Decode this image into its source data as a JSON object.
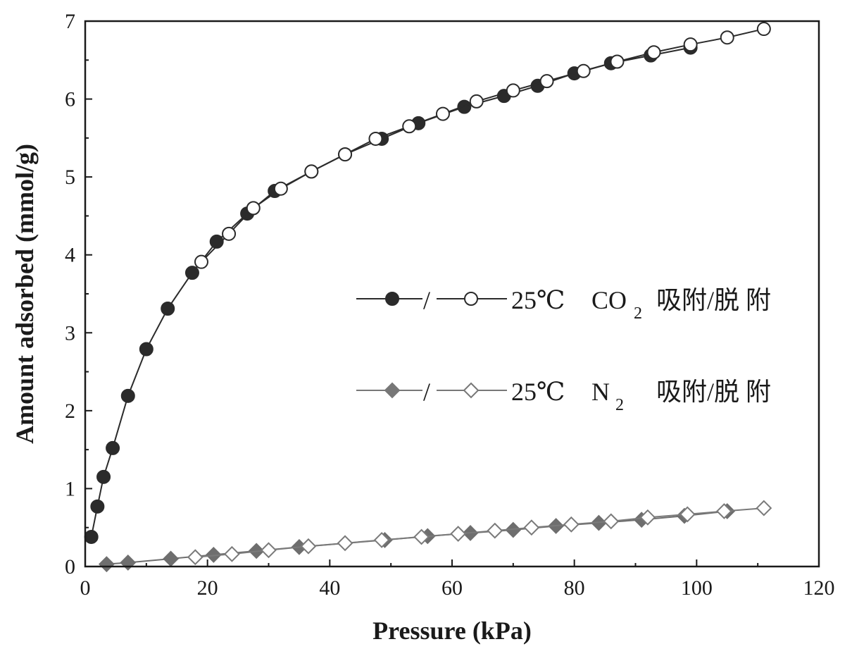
{
  "chart_data": {
    "type": "line",
    "xlabel": "Pressure (kPa)",
    "ylabel": "Amount adsorbed (mmol/g)",
    "xlim": [
      0,
      120
    ],
    "ylim": [
      0,
      7
    ],
    "xticks": [
      "0",
      "20",
      "40",
      "60",
      "80",
      "100",
      "120"
    ],
    "yticks": [
      "0",
      "1",
      "2",
      "3",
      "4",
      "5",
      "6",
      "7"
    ],
    "grid": false,
    "legend_position": "center-right",
    "legend": [
      {
        "sep": "/",
        "temp": "25℃",
        "gas": "CO",
        "gas_sub": "2",
        "desc": "吸附/脱 附",
        "adsorption_marker": "filled-circle",
        "desorption_marker": "open-circle",
        "color": "#2b2b2b"
      },
      {
        "sep": "/",
        "temp": "25℃",
        "gas": "N",
        "gas_sub": "2",
        "desc": "吸附/脱 附",
        "adsorption_marker": "filled-diamond",
        "desorption_marker": "open-diamond",
        "color": "#777777"
      }
    ],
    "series": [
      {
        "key": "co2_ads",
        "marker": "circle",
        "filled": true,
        "color": "#2b2b2b",
        "points": [
          [
            1,
            0.38
          ],
          [
            2,
            0.77
          ],
          [
            3,
            1.15
          ],
          [
            4.5,
            1.52
          ],
          [
            7,
            2.19
          ],
          [
            10,
            2.79
          ],
          [
            13.5,
            3.31
          ],
          [
            17.5,
            3.77
          ],
          [
            21.5,
            4.17
          ],
          [
            26.5,
            4.53
          ],
          [
            31,
            4.82
          ],
          [
            37,
            5.07
          ],
          [
            42.5,
            5.29
          ],
          [
            48.5,
            5.49
          ],
          [
            54.5,
            5.69
          ],
          [
            62,
            5.9
          ],
          [
            68.5,
            6.04
          ],
          [
            74,
            6.17
          ],
          [
            80,
            6.33
          ],
          [
            86,
            6.46
          ],
          [
            92.5,
            6.56
          ],
          [
            99,
            6.66
          ]
        ]
      },
      {
        "key": "co2_des",
        "marker": "circle",
        "filled": false,
        "color": "#2b2b2b",
        "points": [
          [
            111,
            6.9
          ],
          [
            105,
            6.79
          ],
          [
            99,
            6.7
          ],
          [
            93,
            6.6
          ],
          [
            87,
            6.48
          ],
          [
            81.5,
            6.36
          ],
          [
            75.5,
            6.23
          ],
          [
            70,
            6.11
          ],
          [
            64,
            5.97
          ],
          [
            58.5,
            5.81
          ],
          [
            53,
            5.65
          ],
          [
            47.5,
            5.49
          ],
          [
            42.5,
            5.29
          ],
          [
            37,
            5.07
          ],
          [
            32,
            4.85
          ],
          [
            27.5,
            4.6
          ],
          [
            23.5,
            4.27
          ],
          [
            19,
            3.91
          ]
        ]
      },
      {
        "key": "n2_ads",
        "marker": "diamond",
        "filled": true,
        "color": "#6e6e6e",
        "points": [
          [
            3.5,
            0.03
          ],
          [
            7,
            0.05
          ],
          [
            14,
            0.1
          ],
          [
            21,
            0.15
          ],
          [
            28,
            0.2
          ],
          [
            35,
            0.25
          ],
          [
            49,
            0.34
          ],
          [
            56,
            0.39
          ],
          [
            63,
            0.43
          ],
          [
            70,
            0.47
          ],
          [
            77,
            0.52
          ],
          [
            84,
            0.56
          ],
          [
            91,
            0.6
          ],
          [
            98,
            0.65
          ],
          [
            105,
            0.71
          ]
        ]
      },
      {
        "key": "n2_des",
        "marker": "diamond",
        "filled": false,
        "color": "#7a7a7a",
        "points": [
          [
            111,
            0.75
          ],
          [
            104.5,
            0.71
          ],
          [
            98.5,
            0.67
          ],
          [
            92,
            0.63
          ],
          [
            86,
            0.58
          ],
          [
            79.5,
            0.54
          ],
          [
            73,
            0.5
          ],
          [
            67,
            0.46
          ],
          [
            61,
            0.42
          ],
          [
            55,
            0.38
          ],
          [
            48.5,
            0.34
          ],
          [
            42.5,
            0.3
          ],
          [
            36.5,
            0.26
          ],
          [
            30,
            0.21
          ],
          [
            24,
            0.16
          ],
          [
            18,
            0.12
          ]
        ]
      }
    ]
  }
}
